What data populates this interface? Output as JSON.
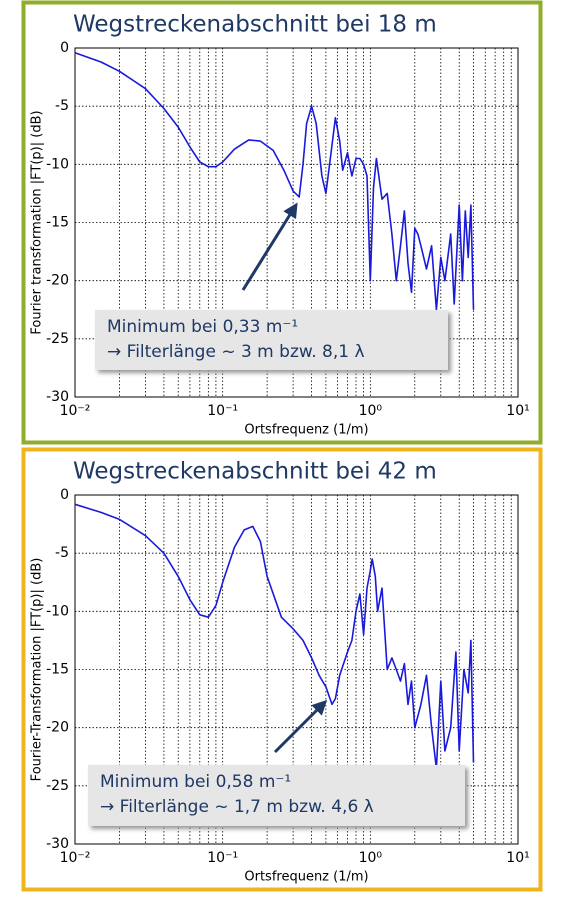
{
  "chart_data": [
    {
      "type": "line",
      "title": "Wegstreckenabschnitt bei 18 m",
      "xlabel": "Ortsfrequenz (1/m)",
      "ylabel": "Fourier transformation |FT(p)| (dB)",
      "xscale": "log",
      "grid": true,
      "color": "#1a1adc",
      "xlim": [
        0.01,
        10
      ],
      "ylim": [
        -30,
        0
      ],
      "xticks": [
        {
          "value": 0.01,
          "label": "10⁻²"
        },
        {
          "value": 0.1,
          "label": "10⁻¹"
        },
        {
          "value": 1,
          "label": "10⁰"
        },
        {
          "value": 10,
          "label": "10¹"
        }
      ],
      "yticks": [
        0,
        -5,
        -10,
        -15,
        -20,
        -25,
        -30
      ],
      "annotation": [
        "Minimum bei 0,33 m⁻¹",
        "→ Filterlänge ~ 3 m bzw. 8,1 λ"
      ],
      "x": [
        0.01,
        0.015,
        0.02,
        0.03,
        0.04,
        0.05,
        0.06,
        0.07,
        0.08,
        0.09,
        0.1,
        0.12,
        0.15,
        0.18,
        0.22,
        0.26,
        0.3,
        0.33,
        0.35,
        0.37,
        0.4,
        0.43,
        0.47,
        0.5,
        0.53,
        0.58,
        0.62,
        0.65,
        0.7,
        0.75,
        0.8,
        0.85,
        0.9,
        0.95,
        1.0,
        1.05,
        1.1,
        1.2,
        1.3,
        1.4,
        1.5,
        1.6,
        1.7,
        1.8,
        1.9,
        2.0,
        2.1,
        2.2,
        2.4,
        2.6,
        2.8,
        3.0,
        3.2,
        3.5,
        3.7,
        4.0,
        4.2,
        4.4,
        4.6,
        4.8,
        5.0
      ],
      "values": [
        -0.4,
        -1.2,
        -2,
        -3.5,
        -5.2,
        -6.8,
        -8.5,
        -9.8,
        -10.2,
        -10.2,
        -9.8,
        -8.7,
        -7.9,
        -8.0,
        -8.8,
        -10.5,
        -12.3,
        -12.8,
        -10,
        -6.5,
        -5,
        -6.5,
        -11,
        -12.5,
        -10,
        -6,
        -8,
        -10.5,
        -9,
        -11,
        -9.5,
        -9.5,
        -10,
        -11,
        -20,
        -12,
        -9.5,
        -13,
        -12.5,
        -16,
        -20,
        -17,
        -14,
        -18.5,
        -21,
        -15.5,
        -16,
        -17,
        -19,
        -17,
        -22.5,
        -18,
        -20,
        -16,
        -22,
        -13.5,
        -20,
        -14,
        -18,
        -13.5,
        -22.5
      ]
    },
    {
      "type": "line",
      "title": "Wegstreckenabschnitt bei 42 m",
      "xlabel": "Ortsfrequenz (1/m)",
      "ylabel": "Fourier-Transformation |FT(p)| (dB)",
      "xscale": "log",
      "grid": true,
      "color": "#1a1adc",
      "xlim": [
        0.01,
        10
      ],
      "ylim": [
        -30,
        0
      ],
      "xticks": [
        {
          "value": 0.01,
          "label": "10⁻²"
        },
        {
          "value": 0.1,
          "label": "10⁻¹"
        },
        {
          "value": 1,
          "label": "10⁰"
        },
        {
          "value": 10,
          "label": "10¹"
        }
      ],
      "yticks": [
        0,
        -5,
        -10,
        -15,
        -20,
        -25,
        -30
      ],
      "annotation": [
        "Minimum bei 0,58 m⁻¹",
        "→ Filterlänge ~ 1,7 m bzw. 4,6 λ"
      ],
      "x": [
        0.01,
        0.015,
        0.02,
        0.03,
        0.04,
        0.05,
        0.06,
        0.07,
        0.08,
        0.09,
        0.1,
        0.12,
        0.14,
        0.16,
        0.18,
        0.2,
        0.25,
        0.3,
        0.35,
        0.4,
        0.45,
        0.5,
        0.55,
        0.58,
        0.62,
        0.7,
        0.75,
        0.8,
        0.85,
        0.9,
        0.95,
        1.0,
        1.03,
        1.08,
        1.12,
        1.2,
        1.3,
        1.4,
        1.5,
        1.6,
        1.7,
        1.8,
        1.9,
        2.0,
        2.2,
        2.4,
        2.6,
        2.8,
        3.0,
        3.2,
        3.5,
        3.8,
        4.0,
        4.3,
        4.6,
        4.8,
        5.0
      ],
      "values": [
        -0.8,
        -1.5,
        -2.1,
        -3.5,
        -5,
        -7,
        -9,
        -10.3,
        -10.5,
        -9.5,
        -7.5,
        -4.5,
        -3,
        -2.7,
        -4,
        -7,
        -10.5,
        -11.5,
        -12.5,
        -14,
        -15.5,
        -16.5,
        -18,
        -17.5,
        -15.5,
        -13.5,
        -12.5,
        -10,
        -8.5,
        -12,
        -8,
        -6.5,
        -5.5,
        -7,
        -10,
        -8,
        -15,
        -14,
        -15,
        -16,
        -14.5,
        -18,
        -16,
        -20,
        -18,
        -15.5,
        -20,
        -23.5,
        -16,
        -22,
        -20,
        -13.5,
        -22,
        -15,
        -17,
        -12.5,
        -23
      ]
    }
  ]
}
